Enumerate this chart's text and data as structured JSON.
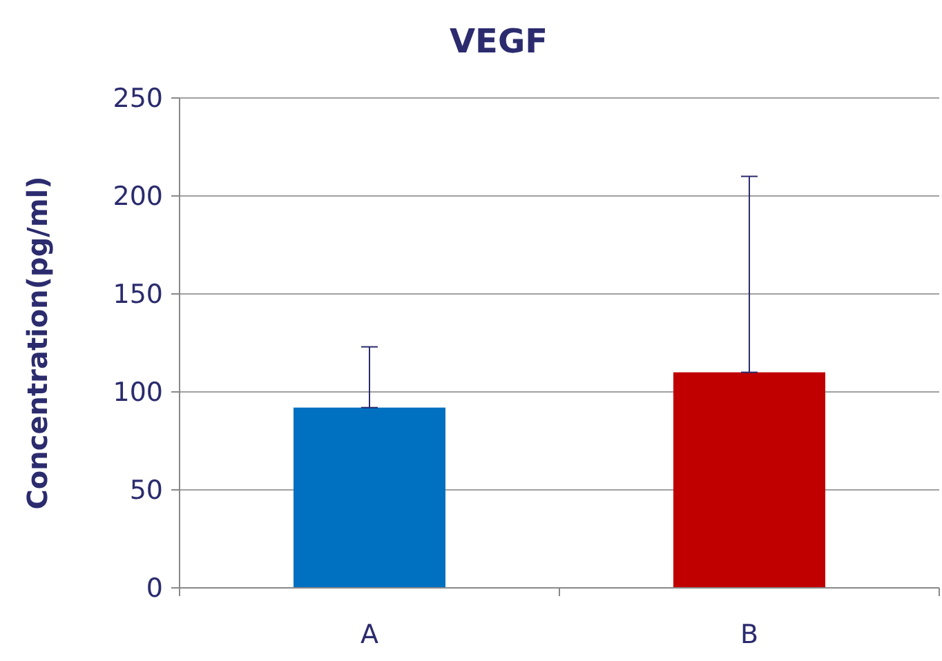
{
  "chart_data": {
    "type": "bar",
    "title": "VEGF",
    "ylabel": "Concentration(pg/ml)",
    "categories": [
      "A",
      "B"
    ],
    "values": [
      92,
      110
    ],
    "colors": [
      "#0070c0",
      "#c00000"
    ],
    "errors": [
      [
        92,
        123
      ],
      [
        110,
        210
      ]
    ],
    "ylim": [
      0,
      250
    ],
    "yticks": [
      0,
      50,
      100,
      150,
      200,
      250
    ],
    "grid": "y"
  }
}
